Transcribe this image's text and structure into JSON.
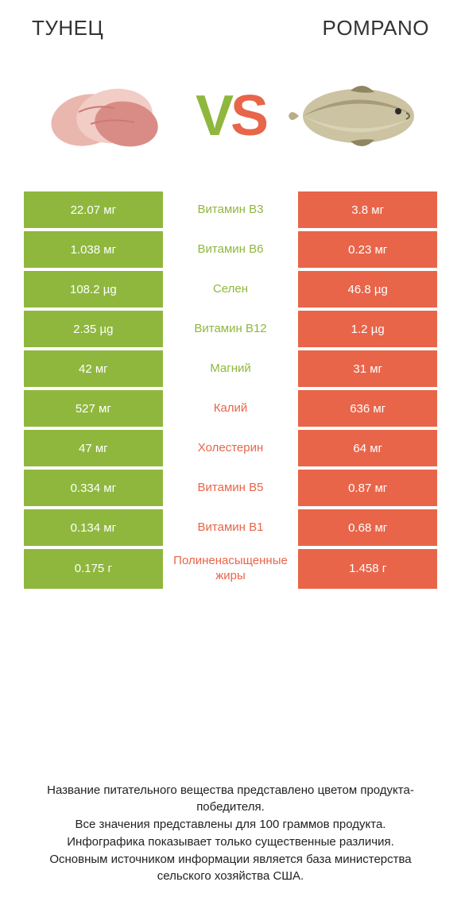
{
  "colors": {
    "green": "#8fb73e",
    "orange": "#e8654a",
    "text": "#333333",
    "vs_v": "#8fb73e",
    "vs_s": "#e8654a",
    "background": "#ffffff"
  },
  "titles": {
    "left": "ТУНЕЦ",
    "right": "POMPANO"
  },
  "vs": {
    "v": "V",
    "s": "S"
  },
  "hero": {
    "left_alt": "tuna-slices",
    "right_alt": "pompano-fish"
  },
  "rows": [
    {
      "label": "Витамин B3",
      "left": "22.07 мг",
      "right": "3.8 мг",
      "label_color": "green"
    },
    {
      "label": "Витамин B6",
      "left": "1.038 мг",
      "right": "0.23 мг",
      "label_color": "green"
    },
    {
      "label": "Селен",
      "left": "108.2 µg",
      "right": "46.8 µg",
      "label_color": "green"
    },
    {
      "label": "Витамин B12",
      "left": "2.35 µg",
      "right": "1.2 µg",
      "label_color": "green"
    },
    {
      "label": "Магний",
      "left": "42 мг",
      "right": "31 мг",
      "label_color": "green"
    },
    {
      "label": "Калий",
      "left": "527 мг",
      "right": "636 мг",
      "label_color": "orange"
    },
    {
      "label": "Холестерин",
      "left": "47 мг",
      "right": "64 мг",
      "label_color": "orange"
    },
    {
      "label": "Витамин B5",
      "left": "0.334 мг",
      "right": "0.87 мг",
      "label_color": "orange"
    },
    {
      "label": "Витамин B1",
      "left": "0.134 мг",
      "right": "0.68 мг",
      "label_color": "orange"
    },
    {
      "label": "Полиненасыщенные жиры",
      "left": "0.175 г",
      "right": "1.458 г",
      "label_color": "orange"
    }
  ],
  "footer": {
    "line1": "Название питательного вещества представлено цветом продукта-победителя.",
    "line2": "Все значения представлены для 100 граммов продукта.",
    "line3": "Инфографика показывает только существенные различия.",
    "line4": "Основным источником информации является база министерства сельского хозяйства США."
  },
  "typography": {
    "title_fontsize": 26,
    "vs_fontsize": 72,
    "cell_fontsize": 15,
    "footer_fontsize": 15
  }
}
